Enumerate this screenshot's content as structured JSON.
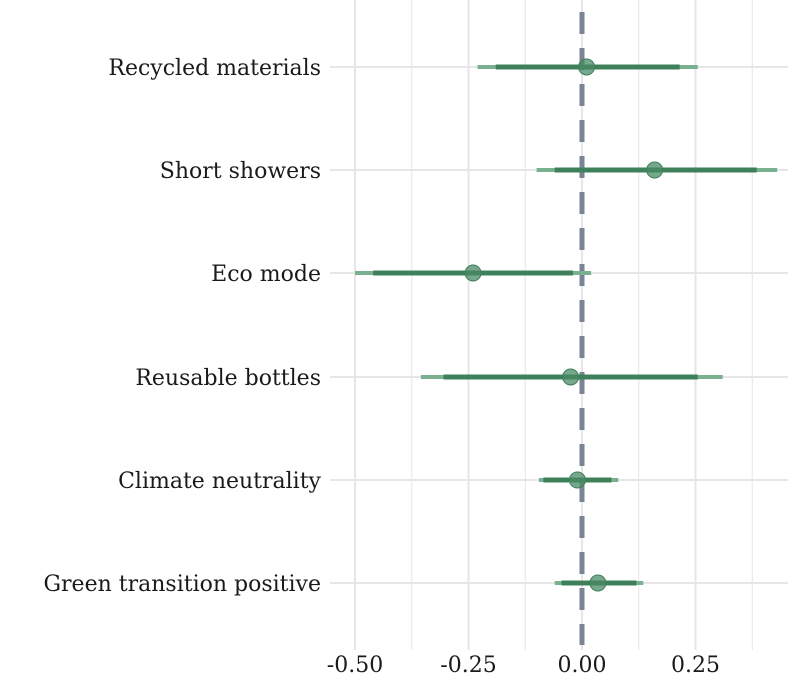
{
  "chart_data": {
    "type": "forest",
    "title": "",
    "xlabel": "",
    "ylabel": "",
    "xlim": [
      -0.52,
      0.45
    ],
    "x_ticks": [
      -0.5,
      -0.25,
      0.0,
      0.25
    ],
    "x_tick_labels": [
      "-0.50",
      "-0.25",
      "0.00",
      "0.25"
    ],
    "reference_line": 0.0,
    "grid": true,
    "colors": {
      "point": "#4a8a65",
      "inner_interval": "#3d8059",
      "outer_interval": "#78b090",
      "reference": "#7a8494",
      "grid": "#e6e6e6"
    },
    "categories": [
      "Recycled materials",
      "Short showers",
      "Eco mode",
      "Reusable bottles",
      "Climate neutrality",
      "Green transition positive"
    ],
    "estimates": [
      0.01,
      0.16,
      -0.24,
      -0.025,
      -0.01,
      0.035
    ],
    "inner_intervals": [
      [
        -0.19,
        0.215
      ],
      [
        -0.06,
        0.385
      ],
      [
        -0.46,
        -0.02
      ],
      [
        -0.305,
        0.255
      ],
      [
        -0.085,
        0.065
      ],
      [
        -0.045,
        0.12
      ]
    ],
    "outer_intervals": [
      [
        -0.23,
        0.255
      ],
      [
        -0.1,
        0.43
      ],
      [
        -0.5,
        0.02
      ],
      [
        -0.355,
        0.31
      ],
      [
        -0.095,
        0.08
      ],
      [
        -0.06,
        0.135
      ]
    ]
  }
}
